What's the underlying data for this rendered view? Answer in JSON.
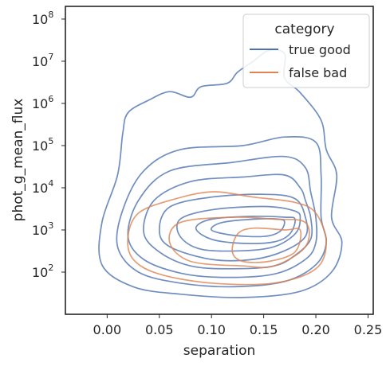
{
  "chart_data": {
    "type": "kde_contour",
    "xlabel": "separation",
    "ylabel": "phot_g_mean_flux",
    "x_scale": "linear",
    "y_scale": "log",
    "xlim": [
      -0.04,
      0.255
    ],
    "ylim": [
      10,
      200000000
    ],
    "x_ticks": [
      {
        "value": 0.0,
        "label": "0.00"
      },
      {
        "value": 0.05,
        "label": "0.05"
      },
      {
        "value": 0.1,
        "label": "0.10"
      },
      {
        "value": 0.15,
        "label": "0.15"
      },
      {
        "value": 0.2,
        "label": "0.20"
      },
      {
        "value": 0.25,
        "label": "0.25"
      }
    ],
    "y_ticks": [
      {
        "value": 100,
        "base": "10",
        "exp": "2"
      },
      {
        "value": 1000,
        "base": "10",
        "exp": "3"
      },
      {
        "value": 10000,
        "base": "10",
        "exp": "4"
      },
      {
        "value": 100000,
        "base": "10",
        "exp": "5"
      },
      {
        "value": 1000000,
        "base": "10",
        "exp": "6"
      },
      {
        "value": 10000000,
        "base": "10",
        "exp": "7"
      },
      {
        "value": 100000000,
        "base": "10",
        "exp": "8"
      }
    ],
    "grid": false,
    "legend": {
      "title": "category",
      "placement": "top-right",
      "entries": [
        {
          "label": "true good",
          "color": "#4c72b0"
        },
        {
          "label": "false bad",
          "color": "#dd8452"
        }
      ]
    },
    "series": [
      {
        "name": "true good",
        "color": "#4c72b0",
        "levels": [
          [
            [
              0.215,
              2000
            ],
            [
              0.225,
              500
            ],
            [
              0.215,
              100
            ],
            [
              0.185,
              35
            ],
            [
              0.13,
              25
            ],
            [
              0.07,
              30
            ],
            [
              0.025,
              45
            ],
            [
              -0.005,
              150
            ],
            [
              -0.005,
              1500
            ],
            [
              0.01,
              20000
            ],
            [
              0.015,
              200000
            ],
            [
              0.02,
              600000
            ],
            [
              0.04,
              1200000
            ],
            [
              0.06,
              1900000
            ],
            [
              0.08,
              1400000
            ],
            [
              0.09,
              2500000
            ],
            [
              0.115,
              3000000
            ],
            [
              0.125,
              5500000
            ],
            [
              0.14,
              10000000
            ],
            [
              0.155,
              18000000
            ],
            [
              0.17,
              15000000
            ],
            [
              0.17,
              4000000
            ],
            [
              0.185,
              1800000
            ],
            [
              0.205,
              400000
            ],
            [
              0.21,
              80000
            ],
            [
              0.22,
              20000
            ]
          ],
          [
            [
              0.205,
              2000
            ],
            [
              0.21,
              500
            ],
            [
              0.2,
              150
            ],
            [
              0.17,
              60
            ],
            [
              0.12,
              45
            ],
            [
              0.07,
              55
            ],
            [
              0.03,
              100
            ],
            [
              0.01,
              400
            ],
            [
              0.015,
              3000
            ],
            [
              0.035,
              25000
            ],
            [
              0.07,
              80000
            ],
            [
              0.13,
              100000
            ],
            [
              0.17,
              160000
            ],
            [
              0.2,
              120000
            ],
            [
              0.205,
              20000
            ]
          ],
          [
            [
              0.2,
              2000
            ],
            [
              0.2,
              500
            ],
            [
              0.19,
              200
            ],
            [
              0.16,
              90
            ],
            [
              0.11,
              75
            ],
            [
              0.07,
              95
            ],
            [
              0.035,
              200
            ],
            [
              0.02,
              700
            ],
            [
              0.03,
              5000
            ],
            [
              0.06,
              25000
            ],
            [
              0.12,
              40000
            ],
            [
              0.17,
              55000
            ],
            [
              0.19,
              30000
            ],
            [
              0.195,
              8000
            ]
          ],
          [
            [
              0.195,
              2000
            ],
            [
              0.195,
              600
            ],
            [
              0.18,
              250
            ],
            [
              0.16,
              140
            ],
            [
              0.12,
              120
            ],
            [
              0.08,
              140
            ],
            [
              0.05,
              300
            ],
            [
              0.035,
              900
            ],
            [
              0.045,
              5000
            ],
            [
              0.08,
              14000
            ],
            [
              0.13,
              18000
            ],
            [
              0.17,
              20000
            ],
            [
              0.185,
              10000
            ],
            [
              0.19,
              5000
            ]
          ],
          [
            [
              0.19,
              2000
            ],
            [
              0.19,
              700
            ],
            [
              0.17,
              320
            ],
            [
              0.14,
              200
            ],
            [
              0.1,
              200
            ],
            [
              0.06,
              400
            ],
            [
              0.05,
              1000
            ],
            [
              0.06,
              3500
            ],
            [
              0.1,
              6000
            ],
            [
              0.15,
              7000
            ],
            [
              0.18,
              5500
            ]
          ],
          [
            [
              0.185,
              1800
            ],
            [
              0.18,
              800
            ],
            [
              0.16,
              400
            ],
            [
              0.13,
              320
            ],
            [
              0.09,
              350
            ],
            [
              0.07,
              700
            ],
            [
              0.07,
              1800
            ],
            [
              0.1,
              3000
            ],
            [
              0.15,
              3600
            ],
            [
              0.18,
              2800
            ]
          ],
          [
            [
              0.18,
              1800
            ],
            [
              0.175,
              800
            ],
            [
              0.16,
              520
            ],
            [
              0.13,
              480
            ],
            [
              0.1,
              600
            ],
            [
              0.085,
              1100
            ],
            [
              0.1,
              1800
            ],
            [
              0.14,
              2100
            ],
            [
              0.17,
              2000
            ]
          ],
          [
            [
              0.17,
              1500
            ],
            [
              0.165,
              900
            ],
            [
              0.15,
              700
            ],
            [
              0.12,
              750
            ],
            [
              0.1,
              1000
            ],
            [
              0.11,
              1500
            ],
            [
              0.14,
              1800
            ],
            [
              0.165,
              1800
            ]
          ]
        ]
      },
      {
        "name": "false bad",
        "color": "#dd8452",
        "levels": [
          [
            [
              0.2,
              2500
            ],
            [
              0.21,
              500
            ],
            [
              0.2,
              120
            ],
            [
              0.16,
              55
            ],
            [
              0.1,
              55
            ],
            [
              0.05,
              90
            ],
            [
              0.025,
              200
            ],
            [
              0.02,
              700
            ],
            [
              0.03,
              2500
            ],
            [
              0.06,
              5000
            ],
            [
              0.1,
              8000
            ],
            [
              0.14,
              6000
            ],
            [
              0.18,
              4500
            ]
          ],
          [
            [
              0.19,
              1500
            ],
            [
              0.19,
              400
            ],
            [
              0.16,
              140
            ],
            [
              0.13,
              140
            ],
            [
              0.08,
              180
            ],
            [
              0.06,
              500
            ],
            [
              0.07,
              1500
            ],
            [
              0.12,
              2000
            ],
            [
              0.16,
              1800
            ]
          ],
          [
            [
              0.185,
              1000
            ],
            [
              0.18,
              300
            ],
            [
              0.155,
              180
            ],
            [
              0.13,
              180
            ],
            [
              0.12,
              300
            ],
            [
              0.125,
              800
            ],
            [
              0.14,
              1100
            ],
            [
              0.17,
              1000
            ]
          ]
        ]
      }
    ]
  }
}
